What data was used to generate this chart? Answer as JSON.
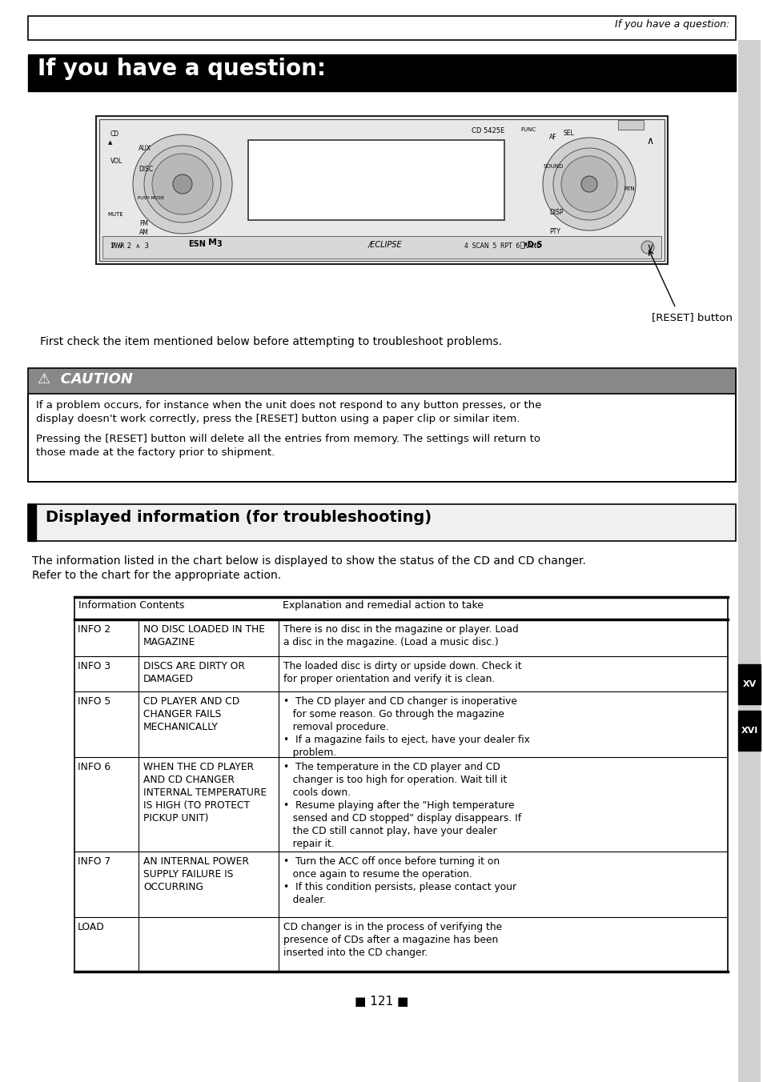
{
  "page_title_header": "If you have a question:",
  "main_title": "If you have a question:",
  "first_check_text": "First check the item mentioned below before attempting to troubleshoot problems.",
  "caution_title": "⚠  CAUTION",
  "caution_text1_line1": "If a problem occurs, for instance when the unit does not respond to any button presses, or the",
  "caution_text1_line2": "display doesn't work correctly, press the [RESET] button using a paper clip or similar item.",
  "caution_text2_line1": "Pressing the [RESET] button will delete all the entries from memory. The settings will return to",
  "caution_text2_line2": "those made at the factory prior to shipment.",
  "section2_title": "Displayed information (for troubleshooting)",
  "intro_line1": "The information listed in the chart below is displayed to show the status of the CD and CD changer.",
  "intro_line2": "Refer to the chart for the appropriate action.",
  "table_header1": "Information Contents",
  "table_header2": "Explanation and remedial action to take",
  "table_rows": [
    {
      "col1": "INFO 2",
      "col2": "NO DISC LOADED IN THE\nMAGAZINE",
      "col3": "There is no disc in the magazine or player. Load\na disc in the magazine. (Load a music disc.)"
    },
    {
      "col1": "INFO 3",
      "col2": "DISCS ARE DIRTY OR\nDAMAGED",
      "col3": "The loaded disc is dirty or upside down. Check it\nfor proper orientation and verify it is clean."
    },
    {
      "col1": "INFO 5",
      "col2": "CD PLAYER AND CD\nCHANGER FAILS\nMECHANICALLY",
      "col3": "•  The CD player and CD changer is inoperative\n   for some reason. Go through the magazine\n   removal procedure.\n•  If a magazine fails to eject, have your dealer fix\n   problem."
    },
    {
      "col1": "INFO 6",
      "col2": "WHEN THE CD PLAYER\nAND CD CHANGER\nINTERNAL TEMPERATURE\nIS HIGH (TO PROTECT\nPICKUP UNIT)",
      "col3": "•  The temperature in the CD player and CD\n   changer is too high for operation. Wait till it\n   cools down.\n•  Resume playing after the \"High temperature\n   sensed and CD stopped\" display disappears. If\n   the CD still cannot play, have your dealer\n   repair it."
    },
    {
      "col1": "INFO 7",
      "col2": "AN INTERNAL POWER\nSUPPLY FAILURE IS\nOCCURRING",
      "col3": "•  Turn the ACC off once before turning it on\n   once again to resume the operation.\n•  If this condition persists, please contact your\n   dealer."
    },
    {
      "col1": "LOAD",
      "col2": "",
      "col3": "CD changer is in the process of verifying the\npresence of CDs after a magazine has been\ninserted into the CD changer."
    }
  ],
  "page_number": "121",
  "sidebar_labels": [
    "XV",
    "XVI"
  ],
  "bg_color": "#ffffff"
}
